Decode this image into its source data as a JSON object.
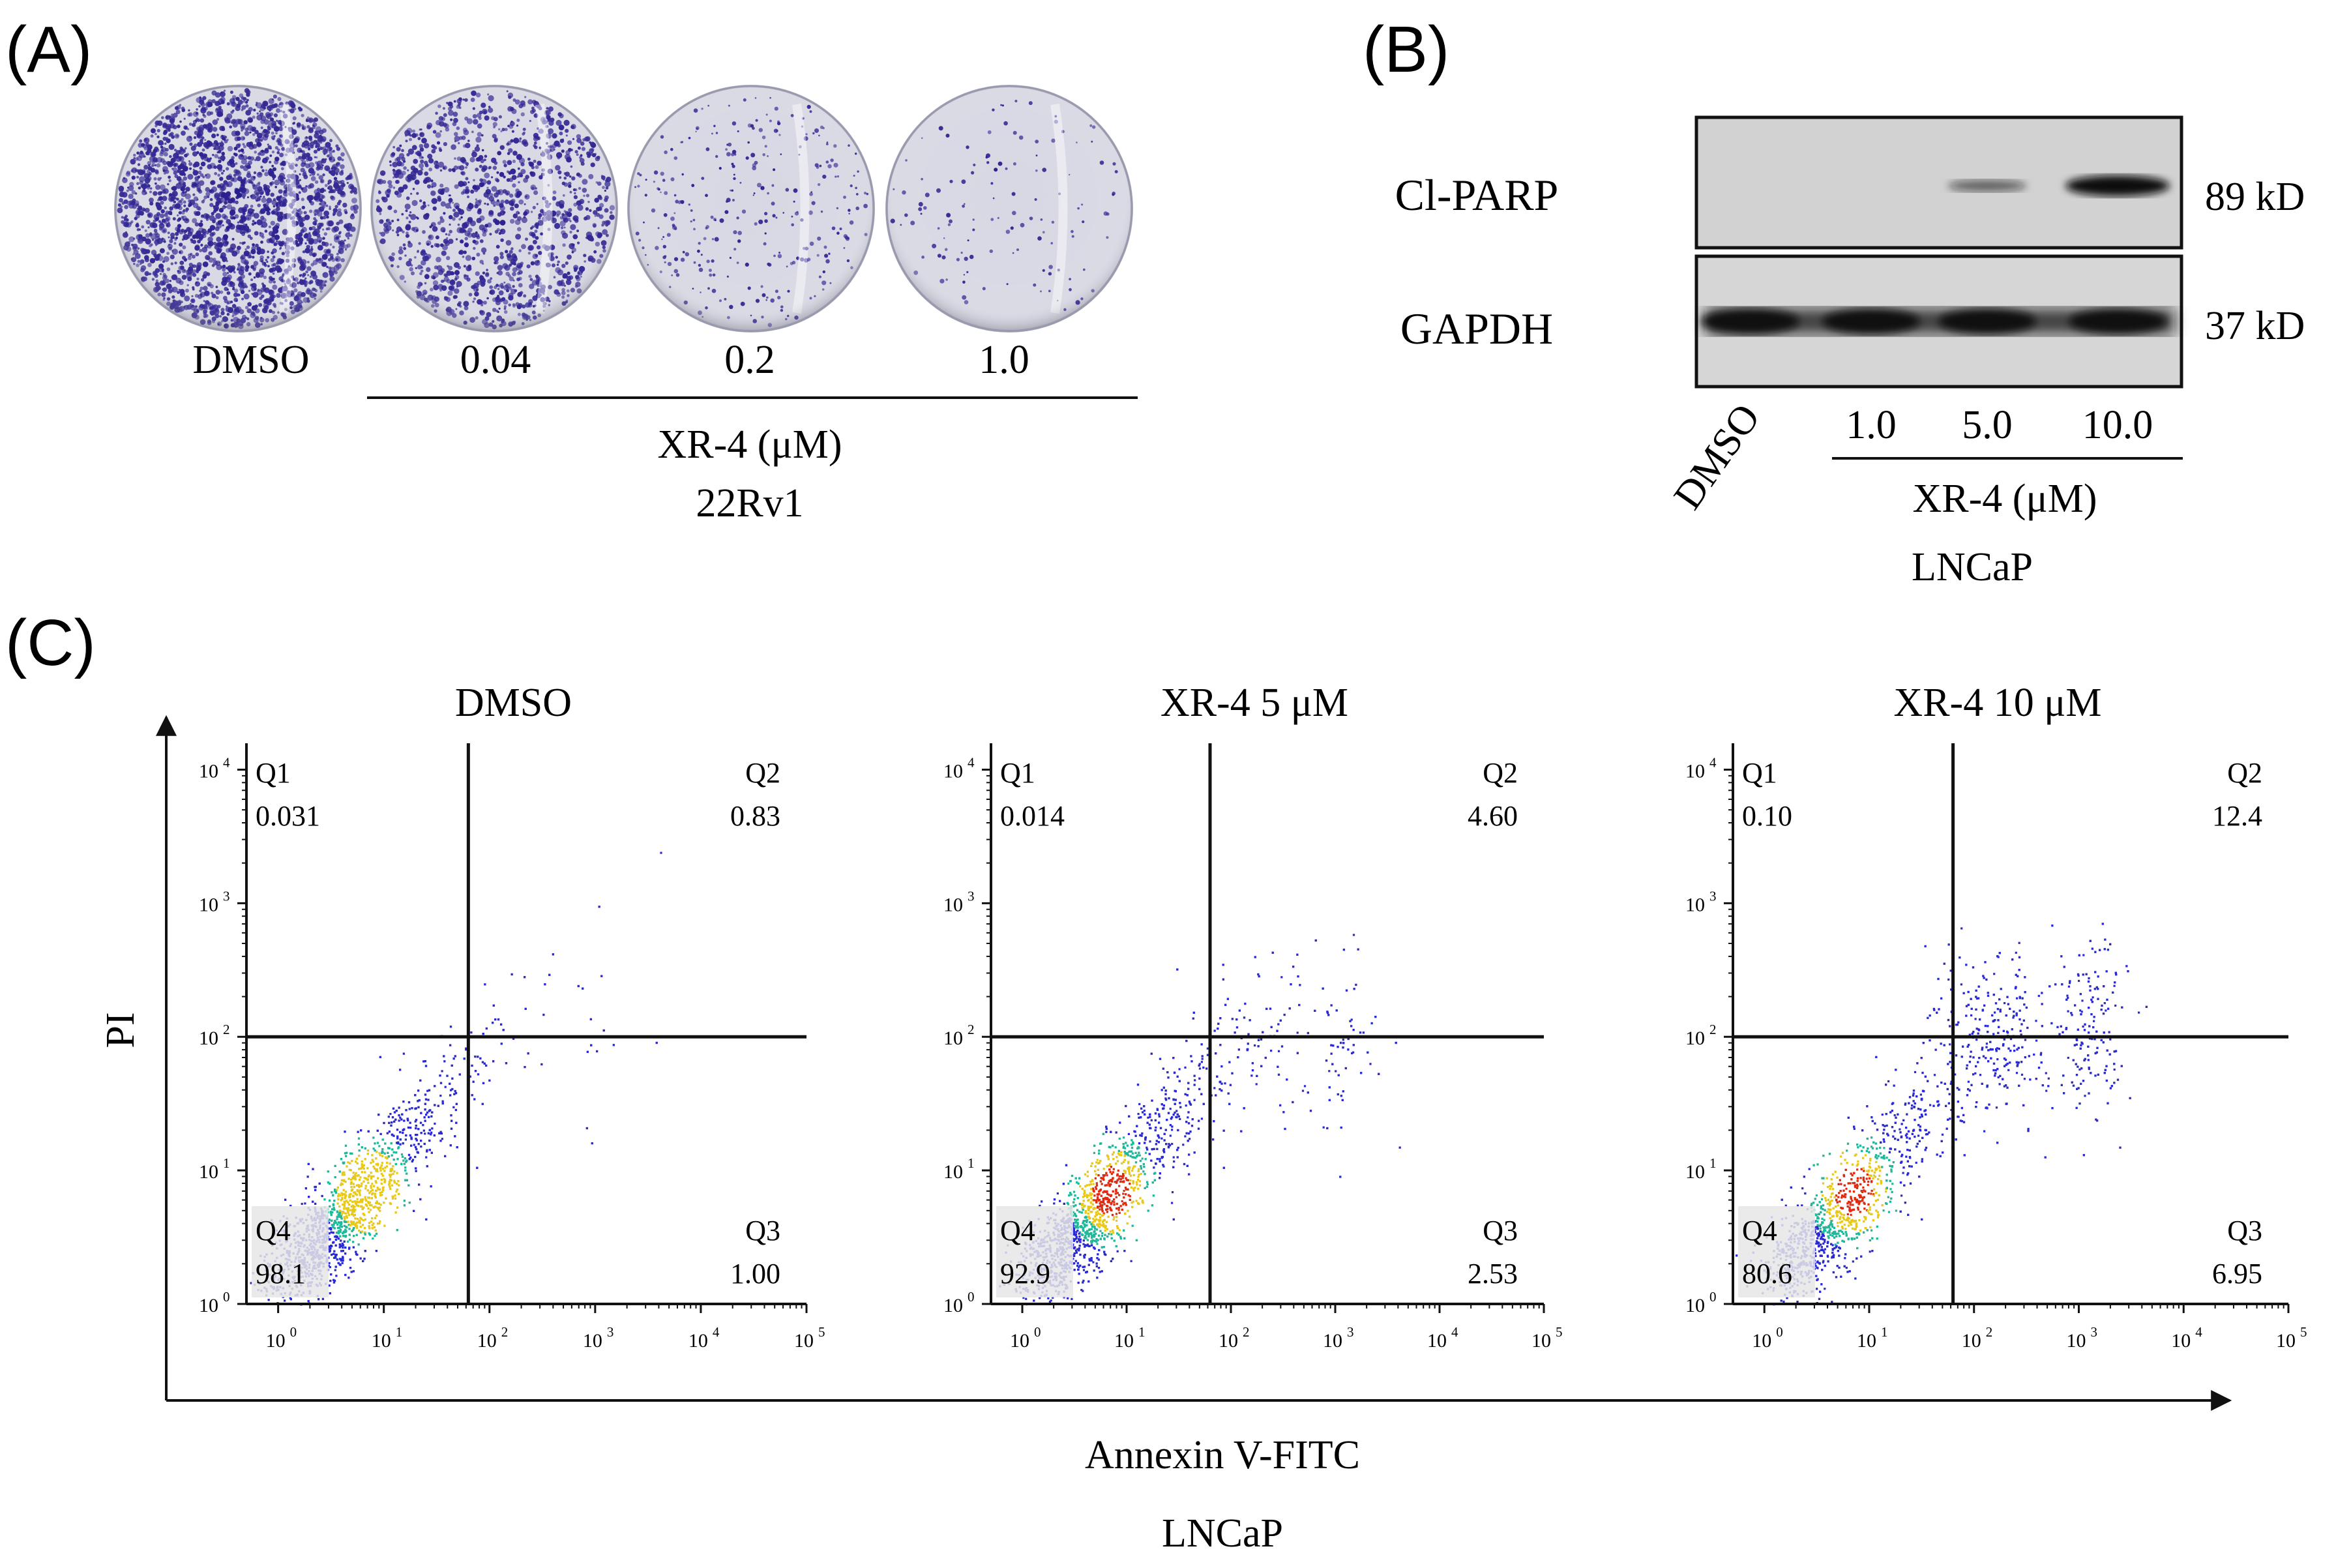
{
  "panel_a": {
    "label": "(A)",
    "dishes": [
      {
        "label": "DMSO",
        "density": 1.0
      },
      {
        "label": "0.04",
        "density": 0.55
      },
      {
        "label": "0.2",
        "density": 0.12
      },
      {
        "label": "1.0",
        "density": 0.04
      }
    ],
    "treatment": "XR-4 (μM)",
    "cell_line": "22Rv1"
  },
  "panel_b": {
    "label": "(B)",
    "proteins": [
      {
        "name": "Cl-PARP",
        "size": "89 kD",
        "intensities": [
          0,
          0,
          0.35,
          1.0
        ]
      },
      {
        "name": "GAPDH",
        "size": "37 kD",
        "intensities": [
          1.0,
          0.85,
          0.9,
          0.95
        ]
      }
    ],
    "lanes": [
      "DMSO",
      "1.0",
      "5.0",
      "10.0"
    ],
    "treatment": "XR-4 (μM)",
    "cell_line": "LNCaP"
  },
  "panel_c": {
    "label": "(C)",
    "y_axis_label": "PI",
    "x_axis_label": "Annexin V-FITC",
    "cell_line": "LNCaP",
    "axis": {
      "x_decades": [
        0,
        1,
        2,
        3,
        4,
        5
      ],
      "y_decades": [
        0,
        1,
        2,
        3,
        4
      ],
      "x_gate": 1.8,
      "y_gate": 2.0
    },
    "chart_data": [
      {
        "type": "scatter",
        "title": "DMSO",
        "xlabel": "Annexin V-FITC",
        "ylabel": "PI",
        "xscale": "log",
        "yscale": "log",
        "xlim": [
          0.5,
          100000
        ],
        "ylim": [
          1,
          10000
        ],
        "quadrants": [
          {
            "name": "Q1",
            "value": "0.031",
            "corner": "top-left"
          },
          {
            "name": "Q2",
            "value": "0.83",
            "corner": "top-right"
          },
          {
            "name": "Q3",
            "value": "1.00",
            "corner": "bottom-right"
          },
          {
            "name": "Q4",
            "value": "98.1",
            "corner": "bottom-left"
          }
        ]
      },
      {
        "type": "scatter",
        "title": "XR-4 5 μM",
        "xlabel": "Annexin V-FITC",
        "ylabel": "PI",
        "xscale": "log",
        "yscale": "log",
        "xlim": [
          0.5,
          100000
        ],
        "ylim": [
          1,
          10000
        ],
        "quadrants": [
          {
            "name": "Q1",
            "value": "0.014",
            "corner": "top-left"
          },
          {
            "name": "Q2",
            "value": "4.60",
            "corner": "top-right"
          },
          {
            "name": "Q3",
            "value": "2.53",
            "corner": "bottom-right"
          },
          {
            "name": "Q4",
            "value": "92.9",
            "corner": "bottom-left"
          }
        ]
      },
      {
        "type": "scatter",
        "title": "XR-4 10 μM",
        "xlabel": "Annexin V-FITC",
        "ylabel": "PI",
        "xscale": "log",
        "yscale": "log",
        "xlim": [
          0.5,
          100000
        ],
        "ylim": [
          1,
          10000
        ],
        "quadrants": [
          {
            "name": "Q1",
            "value": "0.10",
            "corner": "top-left"
          },
          {
            "name": "Q2",
            "value": "12.4",
            "corner": "top-right"
          },
          {
            "name": "Q3",
            "value": "6.95",
            "corner": "bottom-right"
          },
          {
            "name": "Q4",
            "value": "80.6",
            "corner": "bottom-left"
          }
        ]
      }
    ]
  },
  "colors": {
    "crystal_violet": "#2b1f8f",
    "dish_bg": "#dcdce6",
    "blot_bg": "#d4d4d4",
    "band": "#101010",
    "density_low": "#2a2ad0",
    "density_mid": "#1fb89a",
    "density_high": "#e8c81a",
    "density_peak": "#e02a10"
  }
}
